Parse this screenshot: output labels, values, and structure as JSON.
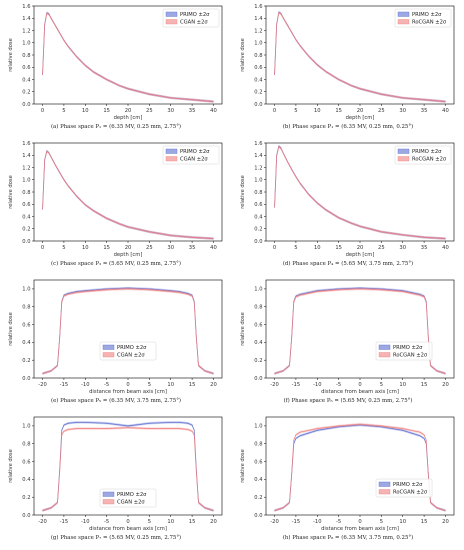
{
  "chart_data": [
    {
      "type": "line",
      "kind": "depth",
      "caption": "(a) Phase space P₁ = (6.35 MV, 0.25 mm, 2.75°)",
      "xlabel": "depth [cm]",
      "ylabel": "relative dose",
      "xlim": [
        -2,
        42
      ],
      "ylim": [
        0,
        1.6
      ],
      "xticks": [
        0,
        5,
        10,
        15,
        20,
        25,
        30,
        35,
        40
      ],
      "yticks": [
        0.0,
        0.2,
        0.4,
        0.6,
        0.8,
        1.0,
        1.2,
        1.4,
        1.6
      ],
      "legend_position": "top-right",
      "x": [
        0,
        0.5,
        1,
        1.5,
        2,
        3,
        4,
        5,
        6,
        8,
        10,
        12,
        15,
        18,
        20,
        25,
        30,
        35,
        40
      ],
      "series": [
        {
          "name": "PRIMO ±2σ",
          "color": "#5b6ed1",
          "values": [
            0.48,
            1.3,
            1.49,
            1.47,
            1.4,
            1.28,
            1.16,
            1.04,
            0.94,
            0.77,
            0.63,
            0.52,
            0.4,
            0.3,
            0.25,
            0.16,
            0.1,
            0.07,
            0.04
          ]
        },
        {
          "name": "CGAN ±2σ",
          "color": "#f08080",
          "values": [
            0.48,
            1.29,
            1.48,
            1.46,
            1.4,
            1.28,
            1.16,
            1.04,
            0.94,
            0.77,
            0.63,
            0.52,
            0.4,
            0.3,
            0.25,
            0.16,
            0.1,
            0.07,
            0.04
          ]
        }
      ]
    },
    {
      "type": "line",
      "kind": "depth",
      "caption": "(b) Phase space P₁ = (6.35 MV, 0.25 mm, 0.25°)",
      "xlabel": "depth [cm]",
      "ylabel": "relative dose",
      "xlim": [
        -2,
        42
      ],
      "ylim": [
        0,
        1.6
      ],
      "xticks": [
        0,
        5,
        10,
        15,
        20,
        25,
        30,
        35,
        40
      ],
      "yticks": [
        0.0,
        0.2,
        0.4,
        0.6,
        0.8,
        1.0,
        1.2,
        1.4,
        1.6
      ],
      "legend_position": "top-right",
      "x": [
        0,
        0.5,
        1,
        1.5,
        2,
        3,
        4,
        5,
        6,
        8,
        10,
        12,
        15,
        18,
        20,
        25,
        30,
        35,
        40
      ],
      "series": [
        {
          "name": "PRIMO ±2σ",
          "color": "#5b6ed1",
          "values": [
            0.48,
            1.31,
            1.5,
            1.48,
            1.41,
            1.29,
            1.17,
            1.05,
            0.95,
            0.78,
            0.64,
            0.53,
            0.4,
            0.3,
            0.25,
            0.16,
            0.1,
            0.07,
            0.04
          ]
        },
        {
          "name": "RoCGAN ±2σ",
          "color": "#f08080",
          "values": [
            0.48,
            1.3,
            1.49,
            1.47,
            1.41,
            1.29,
            1.17,
            1.05,
            0.95,
            0.78,
            0.64,
            0.53,
            0.4,
            0.3,
            0.25,
            0.16,
            0.1,
            0.07,
            0.04
          ]
        }
      ]
    },
    {
      "type": "line",
      "kind": "depth",
      "caption": "(c) Phase space P₃ = (5.65 MV, 0.25 mm, 2.75°)",
      "xlabel": "depth [cm]",
      "ylabel": "relative dose",
      "xlim": [
        -2,
        42
      ],
      "ylim": [
        0,
        1.6
      ],
      "xticks": [
        0,
        5,
        10,
        15,
        20,
        25,
        30,
        35,
        40
      ],
      "yticks": [
        0.0,
        0.2,
        0.4,
        0.6,
        0.8,
        1.0,
        1.2,
        1.4,
        1.6
      ],
      "legend_position": "top-right",
      "x": [
        0,
        0.5,
        1,
        1.5,
        2,
        3,
        4,
        5,
        6,
        8,
        10,
        12,
        15,
        18,
        20,
        25,
        30,
        35,
        40
      ],
      "series": [
        {
          "name": "PRIMO ±2σ",
          "color": "#5b6ed1",
          "values": [
            0.52,
            1.33,
            1.47,
            1.44,
            1.37,
            1.24,
            1.12,
            1.0,
            0.9,
            0.73,
            0.59,
            0.49,
            0.37,
            0.28,
            0.23,
            0.15,
            0.09,
            0.06,
            0.04
          ]
        },
        {
          "name": "CGAN ±2σ",
          "color": "#f08080",
          "values": [
            0.52,
            1.32,
            1.46,
            1.44,
            1.37,
            1.24,
            1.12,
            1.0,
            0.9,
            0.73,
            0.59,
            0.49,
            0.37,
            0.28,
            0.23,
            0.15,
            0.09,
            0.06,
            0.04
          ]
        }
      ]
    },
    {
      "type": "line",
      "kind": "depth",
      "caption": "(d) Phase space P₄ = (5.65 MV, 3.75 mm, 2.75°)",
      "xlabel": "depth [cm]",
      "ylabel": "relative dose",
      "xlim": [
        -2,
        42
      ],
      "ylim": [
        0,
        1.6
      ],
      "xticks": [
        0,
        5,
        10,
        15,
        20,
        25,
        30,
        35,
        40
      ],
      "yticks": [
        0.0,
        0.2,
        0.4,
        0.6,
        0.8,
        1.0,
        1.2,
        1.4,
        1.6
      ],
      "legend_position": "top-right",
      "x": [
        0,
        0.5,
        1,
        1.5,
        2,
        3,
        4,
        5,
        6,
        8,
        10,
        12,
        15,
        18,
        20,
        25,
        30,
        35,
        40
      ],
      "series": [
        {
          "name": "PRIMO ±2σ",
          "color": "#5b6ed1",
          "values": [
            0.55,
            1.4,
            1.55,
            1.52,
            1.44,
            1.3,
            1.17,
            1.05,
            0.94,
            0.76,
            0.62,
            0.51,
            0.38,
            0.29,
            0.24,
            0.15,
            0.1,
            0.06,
            0.04
          ]
        },
        {
          "name": "RoCGAN ±2σ",
          "color": "#f08080",
          "values": [
            0.55,
            1.39,
            1.54,
            1.51,
            1.44,
            1.3,
            1.17,
            1.05,
            0.94,
            0.76,
            0.62,
            0.51,
            0.38,
            0.29,
            0.24,
            0.15,
            0.1,
            0.06,
            0.04
          ]
        }
      ]
    },
    {
      "type": "line",
      "kind": "profile",
      "caption": "(e) Phase space P₅ = (6.35 MV, 3.75 mm, 2.75°)",
      "xlabel": "distance from beam axis [cm]",
      "ylabel": "relative dose",
      "xlim": [
        -22,
        22
      ],
      "ylim": [
        0,
        1.1
      ],
      "xticks": [
        -20,
        -15,
        -10,
        -5,
        0,
        5,
        10,
        15,
        20
      ],
      "yticks": [
        0.0,
        0.2,
        0.4,
        0.6,
        0.8,
        1.0
      ],
      "legend_position": "center",
      "x": [
        -20,
        -18,
        -16.5,
        -16,
        -15.5,
        -15,
        -14,
        -12,
        -10,
        -5,
        0,
        5,
        10,
        12,
        14,
        15,
        15.5,
        16,
        16.5,
        18,
        20
      ],
      "series": [
        {
          "name": "PRIMO ±2σ",
          "color": "#5b6ed1",
          "values": [
            0.05,
            0.08,
            0.14,
            0.45,
            0.86,
            0.93,
            0.95,
            0.97,
            0.98,
            1.0,
            1.01,
            1.0,
            0.98,
            0.97,
            0.95,
            0.93,
            0.86,
            0.45,
            0.14,
            0.08,
            0.05
          ]
        },
        {
          "name": "CGAN ±2σ",
          "color": "#f08080",
          "values": [
            0.05,
            0.08,
            0.14,
            0.45,
            0.85,
            0.92,
            0.94,
            0.96,
            0.97,
            0.99,
            1.0,
            0.99,
            0.97,
            0.96,
            0.94,
            0.92,
            0.85,
            0.45,
            0.14,
            0.08,
            0.05
          ]
        }
      ]
    },
    {
      "type": "line",
      "kind": "profile",
      "caption": "(f) Phase space P₆ = (5.65 MV, 0.25 mm, 2.75°)",
      "xlabel": "distance from beam axis [cm]",
      "ylabel": "relative dose",
      "xlim": [
        -22,
        22
      ],
      "ylim": [
        0,
        1.1
      ],
      "xticks": [
        -20,
        -15,
        -10,
        -5,
        0,
        5,
        10,
        15,
        20
      ],
      "yticks": [
        0.0,
        0.2,
        0.4,
        0.6,
        0.8,
        1.0
      ],
      "legend_position": "center-right",
      "x": [
        -20,
        -18,
        -16.5,
        -16,
        -15.5,
        -15,
        -14,
        -12,
        -10,
        -5,
        0,
        5,
        10,
        12,
        14,
        15,
        15.5,
        16,
        16.5,
        18,
        20
      ],
      "series": [
        {
          "name": "PRIMO ±2σ",
          "color": "#5b6ed1",
          "values": [
            0.05,
            0.08,
            0.14,
            0.45,
            0.86,
            0.92,
            0.94,
            0.96,
            0.98,
            1.0,
            1.01,
            1.0,
            0.98,
            0.96,
            0.94,
            0.92,
            0.86,
            0.45,
            0.14,
            0.08,
            0.05
          ]
        },
        {
          "name": "RoCGAN ±2σ",
          "color": "#f08080",
          "values": [
            0.05,
            0.08,
            0.14,
            0.45,
            0.85,
            0.91,
            0.93,
            0.95,
            0.97,
            0.99,
            1.0,
            0.99,
            0.97,
            0.95,
            0.93,
            0.91,
            0.85,
            0.45,
            0.14,
            0.08,
            0.05
          ]
        }
      ]
    },
    {
      "type": "line",
      "kind": "profile",
      "caption": "(g) Phase space P₇ = (5.65 MV, 0.25 mm, 2.75°)",
      "xlabel": "distance from beam axis [cm]",
      "ylabel": "relative dose",
      "xlim": [
        -22,
        22
      ],
      "ylim": [
        0,
        1.1
      ],
      "xticks": [
        -20,
        -15,
        -10,
        -5,
        0,
        5,
        10,
        15,
        20
      ],
      "yticks": [
        0.0,
        0.2,
        0.4,
        0.6,
        0.8,
        1.0
      ],
      "legend_position": "bottom-center",
      "x": [
        -20,
        -18,
        -16.5,
        -16,
        -15.5,
        -15,
        -14,
        -12,
        -10,
        -5,
        0,
        5,
        10,
        12,
        14,
        15,
        15.5,
        16,
        16.5,
        18,
        20
      ],
      "series": [
        {
          "name": "PRIMO ±2σ",
          "color": "#5b6ed1",
          "values": [
            0.05,
            0.08,
            0.14,
            0.5,
            0.95,
            1.01,
            1.03,
            1.04,
            1.04,
            1.03,
            1.0,
            1.03,
            1.04,
            1.04,
            1.03,
            1.01,
            0.95,
            0.5,
            0.14,
            0.08,
            0.05
          ]
        },
        {
          "name": "CGAN ±2σ",
          "color": "#f08080",
          "values": [
            0.05,
            0.08,
            0.14,
            0.48,
            0.9,
            0.94,
            0.96,
            0.97,
            0.97,
            0.97,
            0.98,
            0.97,
            0.97,
            0.97,
            0.96,
            0.94,
            0.9,
            0.48,
            0.14,
            0.08,
            0.05
          ]
        }
      ]
    },
    {
      "type": "line",
      "kind": "profile",
      "caption": "(h) Phase space P₈ = (6.35 MV, 3.75 mm, 0.25°)",
      "xlabel": "distance from beam axis [cm]",
      "ylabel": "relative dose",
      "xlim": [
        -22,
        22
      ],
      "ylim": [
        0,
        1.1
      ],
      "xticks": [
        -20,
        -15,
        -10,
        -5,
        0,
        5,
        10,
        15,
        20
      ],
      "yticks": [
        0.0,
        0.2,
        0.4,
        0.6,
        0.8,
        1.0
      ],
      "legend_position": "center-right",
      "x": [
        -20,
        -18,
        -16.5,
        -16,
        -15.5,
        -15,
        -14,
        -12,
        -10,
        -5,
        0,
        5,
        10,
        12,
        14,
        15,
        15.5,
        16,
        16.5,
        18,
        20
      ],
      "series": [
        {
          "name": "PRIMO ±2σ",
          "color": "#5b6ed1",
          "values": [
            0.05,
            0.08,
            0.14,
            0.45,
            0.8,
            0.86,
            0.89,
            0.92,
            0.95,
            0.99,
            1.01,
            0.99,
            0.95,
            0.92,
            0.89,
            0.86,
            0.8,
            0.45,
            0.14,
            0.08,
            0.05
          ]
        },
        {
          "name": "RoCGAN ±2σ",
          "color": "#f08080",
          "values": [
            0.05,
            0.08,
            0.14,
            0.45,
            0.84,
            0.9,
            0.93,
            0.95,
            0.97,
            1.0,
            1.02,
            1.0,
            0.97,
            0.95,
            0.93,
            0.9,
            0.84,
            0.45,
            0.14,
            0.08,
            0.05
          ]
        }
      ]
    }
  ]
}
